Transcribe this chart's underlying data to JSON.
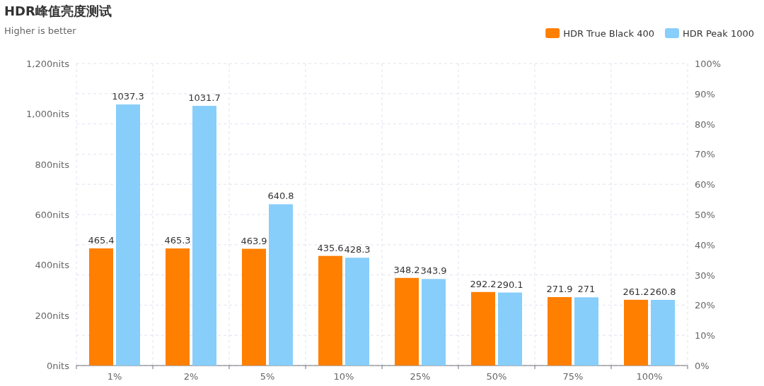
{
  "chart_data": {
    "type": "bar",
    "title": "HDR峰值亮度测试",
    "subtitle": "Higher is better",
    "categories": [
      "1%",
      "2%",
      "5%",
      "10%",
      "25%",
      "50%",
      "75%",
      "100%"
    ],
    "series": [
      {
        "name": "HDR True Black 400",
        "color": "#ff7f00",
        "values": [
          465.4,
          465.3,
          463.9,
          435.6,
          348.2,
          292.2,
          271.9,
          261.2
        ]
      },
      {
        "name": "HDR Peak 1000",
        "color": "#87cefa",
        "values": [
          1037.3,
          1031.7,
          640.8,
          428.3,
          343.9,
          290.1,
          271,
          260.8
        ]
      }
    ],
    "ylim": [
      0,
      1200
    ],
    "yticks": [
      {
        "value": 0,
        "label": "0nits"
      },
      {
        "value": 200,
        "label": "200nits"
      },
      {
        "value": 400,
        "label": "400nits"
      },
      {
        "value": 600,
        "label": "600nits"
      },
      {
        "value": 800,
        "label": "800nits"
      },
      {
        "value": 1000,
        "label": "1,000nits"
      },
      {
        "value": 1200,
        "label": "1,200nits"
      }
    ],
    "y2lim": [
      0,
      100
    ],
    "y2ticks": [
      {
        "value": 0,
        "label": "0%"
      },
      {
        "value": 10,
        "label": "10%"
      },
      {
        "value": 20,
        "label": "20%"
      },
      {
        "value": 30,
        "label": "30%"
      },
      {
        "value": 40,
        "label": "40%"
      },
      {
        "value": 50,
        "label": "50%"
      },
      {
        "value": 60,
        "label": "60%"
      },
      {
        "value": 70,
        "label": "70%"
      },
      {
        "value": 80,
        "label": "80%"
      },
      {
        "value": 90,
        "label": "90%"
      },
      {
        "value": 100,
        "label": "100%"
      }
    ],
    "grid": true,
    "legend": "top right",
    "data_labels": true
  }
}
